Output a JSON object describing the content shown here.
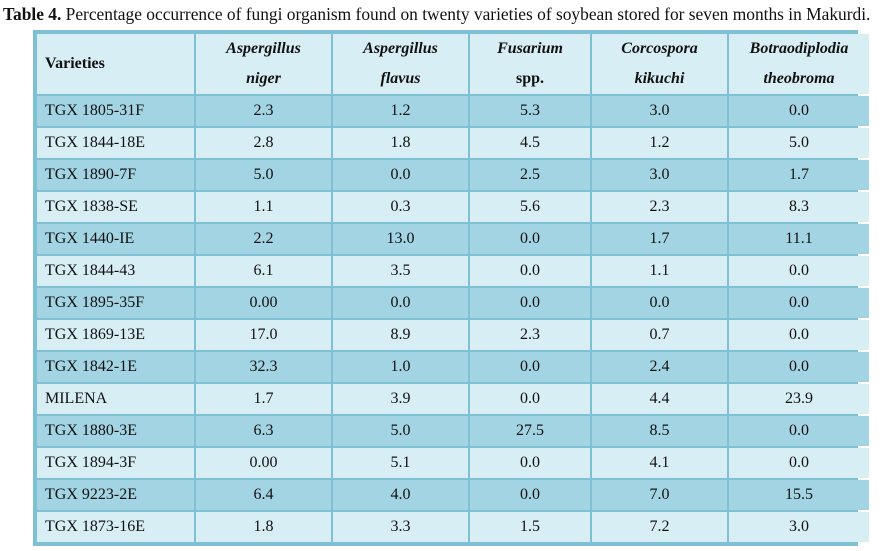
{
  "caption": {
    "label": "Table 4.",
    "text": " Percentage occurrence of fungi organism found on twenty varieties of soybean stored for seven months in Makurdi."
  },
  "table": {
    "headers": [
      {
        "line1": "Varieties",
        "line2": ""
      },
      {
        "line1": "Aspergillus",
        "line2": "niger"
      },
      {
        "line1": "Aspergillus",
        "line2": "flavus"
      },
      {
        "line1": "Fusarium",
        "line2": "spp."
      },
      {
        "line1": "Corcospora",
        "line2": "kikuchi"
      },
      {
        "line1": "Botraodiplodia",
        "line2": "theobroma"
      }
    ],
    "rows": [
      [
        "TGX 1805-31F",
        "2.3",
        "1.2",
        "5.3",
        "3.0",
        "0.0"
      ],
      [
        "TGX 1844-18E",
        "2.8",
        "1.8",
        "4.5",
        "1.2",
        "5.0"
      ],
      [
        "TGX 1890-7F",
        "5.0",
        "0.0",
        "2.5",
        "3.0",
        "1.7"
      ],
      [
        "TGX 1838-SE",
        "1.1",
        "0.3",
        "5.6",
        "2.3",
        "8.3"
      ],
      [
        "TGX 1440-IE",
        "2.2",
        "13.0",
        "0.0",
        "1.7",
        "11.1"
      ],
      [
        "TGX 1844-43",
        "6.1",
        "3.5",
        "0.0",
        "1.1",
        "0.0"
      ],
      [
        "TGX 1895-35F",
        "0.00",
        "0.0",
        "0.0",
        "0.0",
        "0.0"
      ],
      [
        "TGX 1869-13E",
        "17.0",
        "8.9",
        "2.3",
        "0.7",
        "0.0"
      ],
      [
        "TGX 1842-1E",
        "32.3",
        "1.0",
        "0.0",
        "2.4",
        "0.0"
      ],
      [
        "MILENA",
        "1.7",
        "3.9",
        "0.0",
        "4.4",
        "23.9"
      ],
      [
        "TGX 1880-3E",
        "6.3",
        "5.0",
        "27.5",
        "8.5",
        "0.0"
      ],
      [
        "TGX 1894-3F",
        "0.00",
        "5.1",
        "0.0",
        "4.1",
        "0.0"
      ],
      [
        "TGX 9223-2E",
        "6.4",
        "4.0",
        "0.0",
        "7.0",
        "15.5"
      ],
      [
        "TGX 1873-16E",
        "1.8",
        "3.3",
        "1.5",
        "7.2",
        "3.0"
      ]
    ]
  },
  "colors": {
    "border": "#7fc0d4",
    "row_dark": "#a3d4e3",
    "row_light": "#d8eef5"
  }
}
